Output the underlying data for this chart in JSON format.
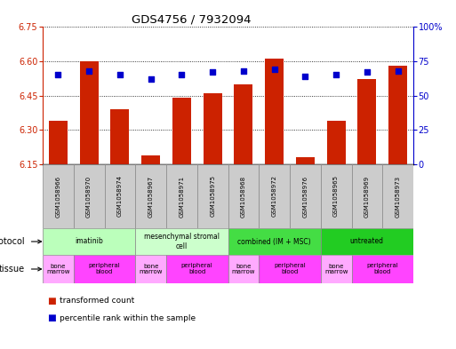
{
  "title": "GDS4756 / 7932094",
  "samples": [
    "GSM1058966",
    "GSM1058970",
    "GSM1058974",
    "GSM1058967",
    "GSM1058971",
    "GSM1058975",
    "GSM1058968",
    "GSM1058972",
    "GSM1058976",
    "GSM1058965",
    "GSM1058969",
    "GSM1058973"
  ],
  "bar_values": [
    6.34,
    6.6,
    6.39,
    6.19,
    6.44,
    6.46,
    6.5,
    6.61,
    6.18,
    6.34,
    6.52,
    6.58
  ],
  "percentile_values": [
    65,
    68,
    65,
    62,
    65,
    67,
    68,
    69,
    64,
    65,
    67,
    68
  ],
  "ylim": [
    6.15,
    6.75
  ],
  "yticks": [
    6.15,
    6.3,
    6.45,
    6.6,
    6.75
  ],
  "right_ylim": [
    0,
    100
  ],
  "right_yticks": [
    0,
    25,
    50,
    75,
    100
  ],
  "bar_color": "#cc2200",
  "dot_color": "#0000cc",
  "bar_bottom": 6.15,
  "protocols": [
    {
      "label": "imatinib",
      "start": 0,
      "end": 3,
      "color": "#bbffbb"
    },
    {
      "label": "mesenchymal stromal\ncell",
      "start": 3,
      "end": 6,
      "color": "#ccffcc"
    },
    {
      "label": "combined (IM + MSC)",
      "start": 6,
      "end": 9,
      "color": "#44dd44"
    },
    {
      "label": "untreated",
      "start": 9,
      "end": 12,
      "color": "#22cc22"
    }
  ],
  "tissues": [
    {
      "label": "bone\nmarrow",
      "start": 0,
      "end": 1,
      "color": "#ffaaff"
    },
    {
      "label": "peripheral\nblood",
      "start": 1,
      "end": 3,
      "color": "#ff44ff"
    },
    {
      "label": "bone\nmarrow",
      "start": 3,
      "end": 4,
      "color": "#ffaaff"
    },
    {
      "label": "peripheral\nblood",
      "start": 4,
      "end": 6,
      "color": "#ff44ff"
    },
    {
      "label": "bone\nmarrow",
      "start": 6,
      "end": 7,
      "color": "#ffaaff"
    },
    {
      "label": "peripheral\nblood",
      "start": 7,
      "end": 9,
      "color": "#ff44ff"
    },
    {
      "label": "bone\nmarrow",
      "start": 9,
      "end": 10,
      "color": "#ffaaff"
    },
    {
      "label": "peripheral\nblood",
      "start": 10,
      "end": 12,
      "color": "#ff44ff"
    }
  ],
  "left_axis_color": "#cc2200",
  "right_axis_color": "#0000cc",
  "background_color": "#ffffff"
}
